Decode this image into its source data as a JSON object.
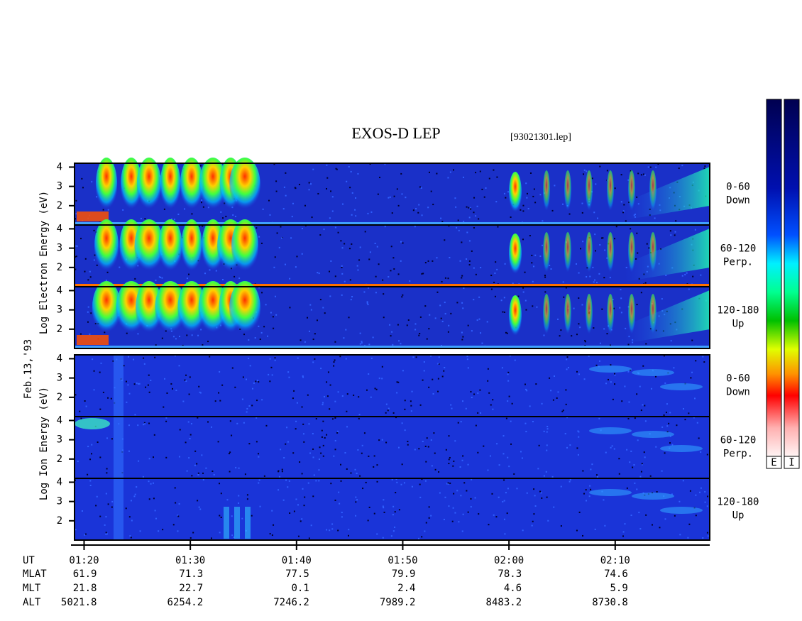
{
  "chart_data": {
    "type": "spectrogram",
    "title": "EXOS-D LEP",
    "file": "[93021301.lep]",
    "date": "Feb.13,'93",
    "species": [
      {
        "label": "Log Electron Energy (eV)",
        "colorbar": "E"
      },
      {
        "label": "Log Ion Energy (eV)",
        "colorbar": "I"
      }
    ],
    "pitch_angle_bins": [
      {
        "range": "0-60",
        "direction": "Down"
      },
      {
        "range": "60-120",
        "direction": "Perp."
      },
      {
        "range": "120-180",
        "direction": "Up"
      }
    ],
    "ylim": [
      1,
      4.2
    ],
    "yticks": [
      2,
      3,
      4
    ],
    "xlim": [
      79.1,
      138.9
    ],
    "xticks": [
      {
        "value": 80,
        "label": "01:20"
      },
      {
        "value": 90,
        "label": "01:30"
      },
      {
        "value": 100,
        "label": "01:40"
      },
      {
        "value": 110,
        "label": "01:50"
      },
      {
        "value": 120,
        "label": "02:00"
      },
      {
        "value": 130,
        "label": "02:10"
      }
    ],
    "orbit": {
      "header": "UT",
      "rows": [
        {
          "label": "MLAT",
          "values": [
            61.9,
            71.3,
            77.5,
            79.9,
            78.3,
            74.6
          ]
        },
        {
          "label": "MLT",
          "values": [
            21.8,
            22.7,
            0.1,
            2.4,
            4.6,
            5.9
          ]
        },
        {
          "label": "ALT",
          "values": [
            5021.8,
            6254.2,
            7246.2,
            7989.2,
            8483.2,
            8730.8
          ]
        }
      ]
    }
  }
}
